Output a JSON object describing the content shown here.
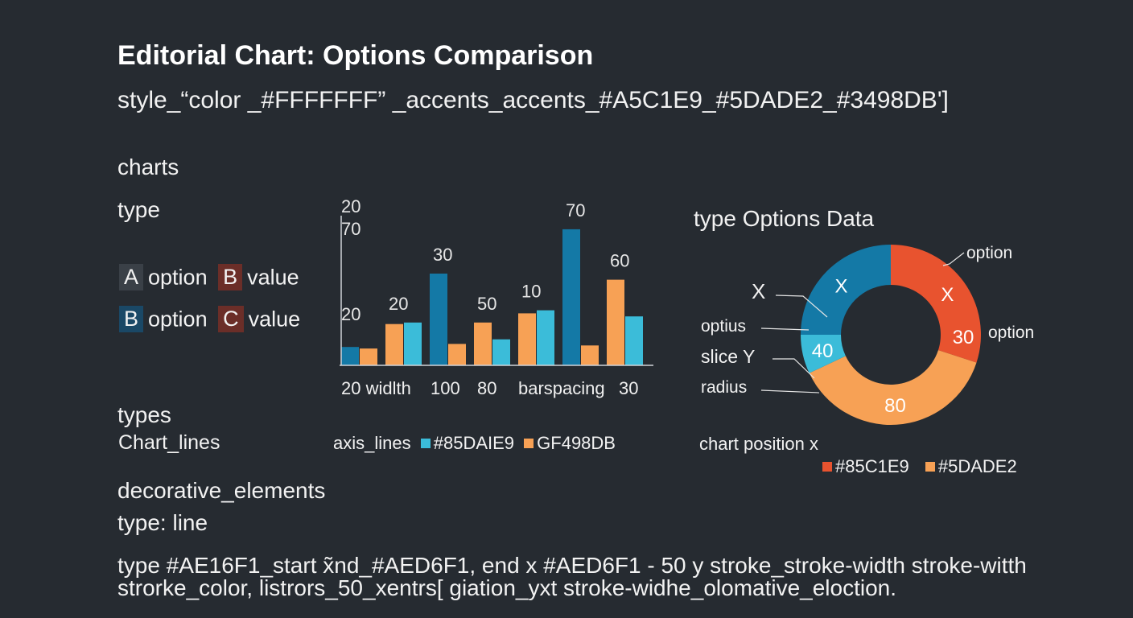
{
  "header": {
    "title": "Editorial Chart: Options Comparison",
    "subtitle": "style_“color _#FFFFFFF” _accents_accents_#A5C1E9_#5DADE2_#3498DB']"
  },
  "left_panel": {
    "charts_label": "charts",
    "type_label": "type",
    "legend_rows": [
      {
        "badge1": "A",
        "text1": "option",
        "badge2": "B",
        "text2": "value"
      },
      {
        "badge1": "B",
        "text1": "option",
        "badge2": "C",
        "text2": "value"
      }
    ],
    "types_label": "types",
    "chart_lines_label": "Chart_lines",
    "decorative_label": "decorative_elements",
    "type_line_label": "type: line"
  },
  "bar_legend": {
    "axis_text": "axis_lines",
    "item1": "#85DAIE9",
    "item2": "GF498DB"
  },
  "donut_legend": {
    "item1": "#85C1E9",
    "item2": "#5DADE2"
  },
  "footer": {
    "line1": "type #AE16F1_start x̃nd_#AED6F1, end x #AED6F1 - 50 y  stroke_stroke-width stroke-witth",
    "line2": "strorke_color,  listrors_50_xentrs[ giation_yxt stroke-widhe_olomative_eloction."
  },
  "colors": {
    "background": "#262b31",
    "dark_blue": "#1479a6",
    "light_blue": "#3bbcd9",
    "orange": "#f7a155",
    "red_orange": "#e8532f",
    "badge_a": "#3a4047",
    "badge_b_red": "#6b2e28",
    "badge_b_blue": "#1a4866"
  },
  "chart_data": [
    {
      "type": "bar",
      "title": "",
      "y_labels_left": [
        "20",
        "70",
        "20"
      ],
      "x_tick_labels": [
        "20 widlth",
        "100",
        "80",
        "barspacing",
        "30"
      ],
      "groups": [
        {
          "bars": [
            {
              "value": 12,
              "color": "dark_blue"
            },
            {
              "value": 11,
              "color": "orange"
            }
          ]
        },
        {
          "bars": [
            {
              "value": 27,
              "color": "orange"
            },
            {
              "value": 28,
              "color": "light_blue"
            }
          ],
          "label": "20"
        },
        {
          "bars": [
            {
              "value": 60,
              "color": "dark_blue"
            },
            {
              "value": 14,
              "color": "orange"
            }
          ],
          "label": "30"
        },
        {
          "bars": [
            {
              "value": 28,
              "color": "orange"
            },
            {
              "value": 17,
              "color": "light_blue"
            }
          ],
          "label": "50"
        },
        {
          "bars": [
            {
              "value": 34,
              "color": "orange"
            },
            {
              "value": 36,
              "color": "light_blue"
            }
          ],
          "label": "10"
        },
        {
          "bars": [
            {
              "value": 89,
              "color": "dark_blue"
            },
            {
              "value": 13,
              "color": "orange"
            }
          ],
          "label": "70"
        },
        {
          "bars": [
            {
              "value": 56,
              "color": "orange"
            },
            {
              "value": 32,
              "color": "light_blue"
            }
          ],
          "label": "60"
        }
      ],
      "ylim": [
        0,
        100
      ]
    },
    {
      "type": "pie",
      "title": "type Options Data",
      "slices": [
        {
          "label": "X",
          "value": 30,
          "color": "red_orange"
        },
        {
          "label": "80",
          "value": 38,
          "color": "orange"
        },
        {
          "label": "40",
          "value": 7,
          "color": "light_blue"
        },
        {
          "label": "X",
          "value": 25,
          "color": "dark_blue"
        }
      ],
      "annotations": [
        "option",
        "option",
        "X",
        "optius",
        "slice Y",
        "radius"
      ],
      "slice_text_30": "30",
      "footer_label": "chart position x"
    }
  ]
}
